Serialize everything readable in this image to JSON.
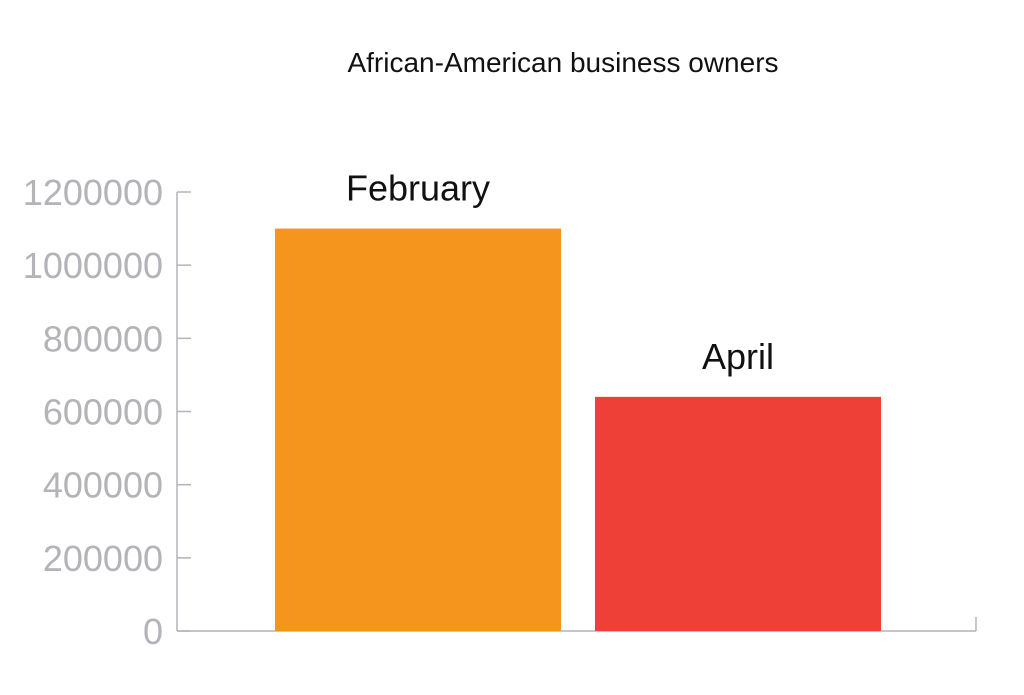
{
  "colors": {
    "background": "#ffffff",
    "axis": "#b3b3b8",
    "tick_text": "#b3b3b8",
    "label_text": "#111111"
  },
  "chart_data": {
    "type": "bar",
    "title": "African-American business owners",
    "xlabel": "",
    "ylabel": "",
    "categories": [
      "February",
      "April"
    ],
    "values": [
      1100000,
      640000
    ],
    "bar_colors": [
      "#f5951e",
      "#ee4037"
    ],
    "ylim": [
      0,
      1200000
    ],
    "yticks": [
      0,
      200000,
      400000,
      600000,
      800000,
      1000000,
      1200000
    ],
    "ytick_labels": [
      "0",
      "200000",
      "400000",
      "600000",
      "800000",
      "1000000",
      "1200000"
    ],
    "grid": false,
    "legend": "none",
    "data_labels": "category names above bars"
  }
}
